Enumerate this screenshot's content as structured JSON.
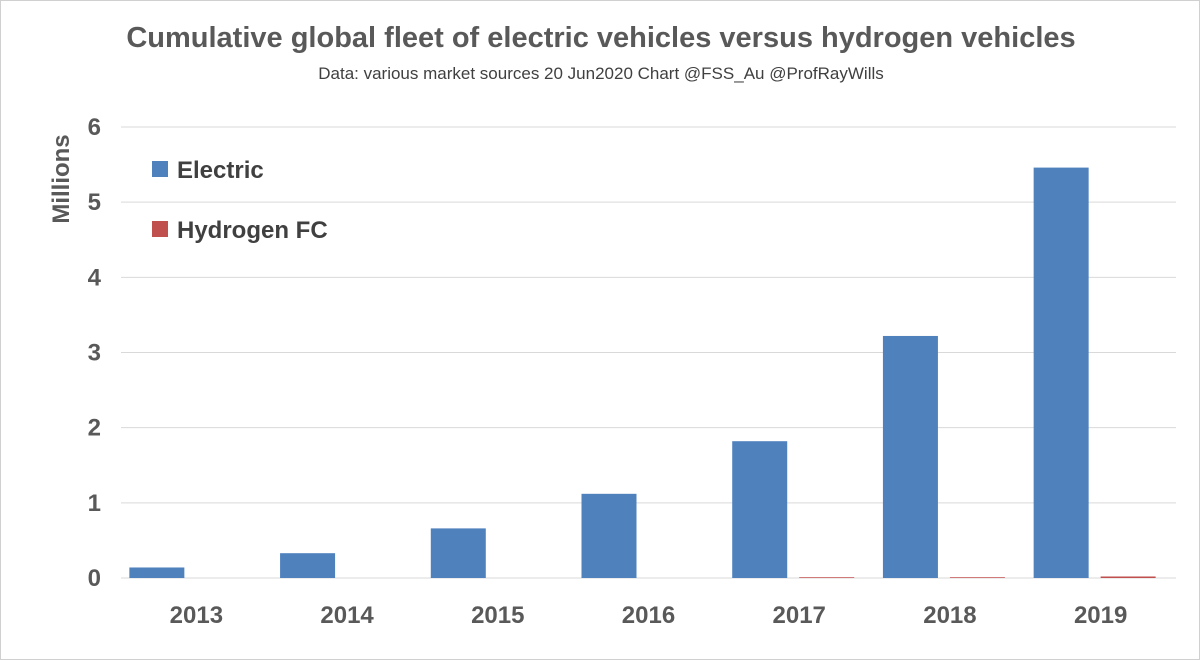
{
  "chart_data": {
    "type": "bar",
    "title": "Cumulative global fleet of electric vehicles versus hydrogen vehicles",
    "subtitle": "Data: various market sources 20 Jun2020 Chart @FSS_Au @ProfRayWills",
    "xlabel": "",
    "ylabel": "Millions",
    "ylim": [
      0,
      6
    ],
    "yticks": [
      0,
      1,
      2,
      3,
      4,
      5,
      6
    ],
    "grid": true,
    "legend_position": "top-left",
    "categories": [
      "2013",
      "2014",
      "2015",
      "2016",
      "2017",
      "2018",
      "2019"
    ],
    "series": [
      {
        "name": "Electric",
        "color": "#4f81bd",
        "values": [
          0.14,
          0.33,
          0.66,
          1.12,
          1.82,
          3.22,
          5.46
        ]
      },
      {
        "name": "Hydrogen FC",
        "color": "#c0504d",
        "values": [
          0.0,
          0.0,
          0.0,
          0.0,
          0.01,
          0.01,
          0.02
        ]
      }
    ]
  }
}
